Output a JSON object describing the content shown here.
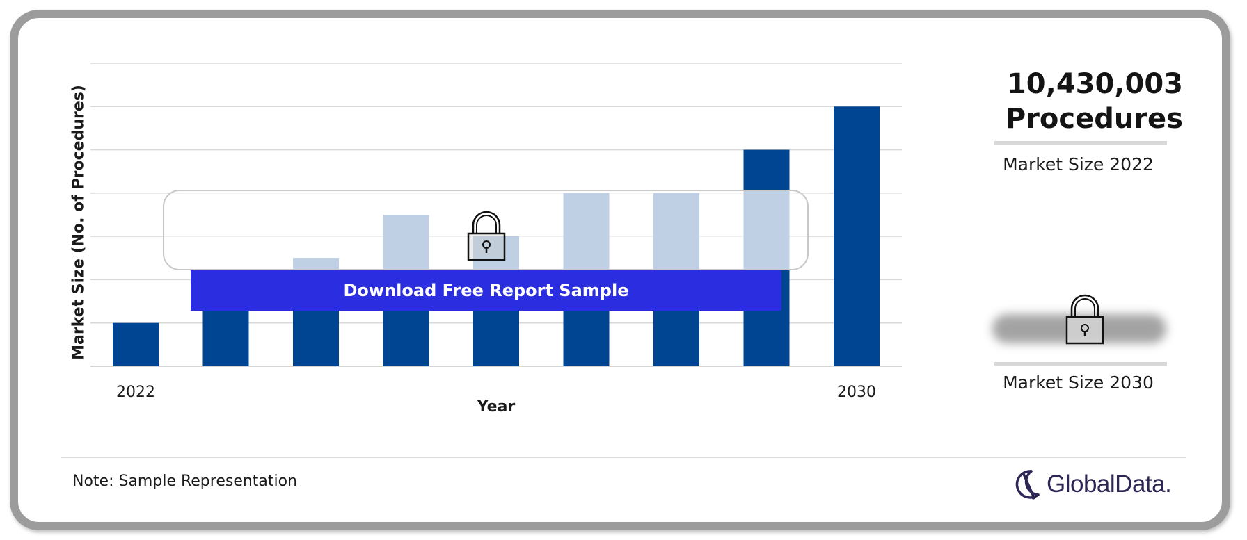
{
  "chart_data": {
    "type": "bar",
    "x_axis_label": "Year",
    "y_axis_label": "Market Size (No. of Procedures)",
    "categories": [
      "2022",
      "",
      "",
      "",
      "",
      "",
      "",
      "",
      "2030"
    ],
    "values": [
      1,
      2,
      2.5,
      3.5,
      3,
      4,
      4,
      5,
      6
    ],
    "ylim": [
      0,
      7
    ],
    "grid": true,
    "bar_color": "#004592",
    "obscured_bar_color": "#7fa1c8",
    "sample_note": "Download Free Report Sample"
  },
  "kpis": {
    "value_2022_line1": "10,430,003",
    "value_2022_line2": "Procedures",
    "label_2022": "Market Size 2022",
    "label_2030": "Market Size 2030"
  },
  "footer": {
    "note": "Note: Sample Representation",
    "logo_text": "GlobalData."
  },
  "icons": {
    "lock": "lock-icon",
    "logo": "globaldata-logo-icon"
  },
  "colors": {
    "frame_border": "#9c9c9c",
    "download_button": "#2b2de0",
    "logo": "#2e2755"
  }
}
